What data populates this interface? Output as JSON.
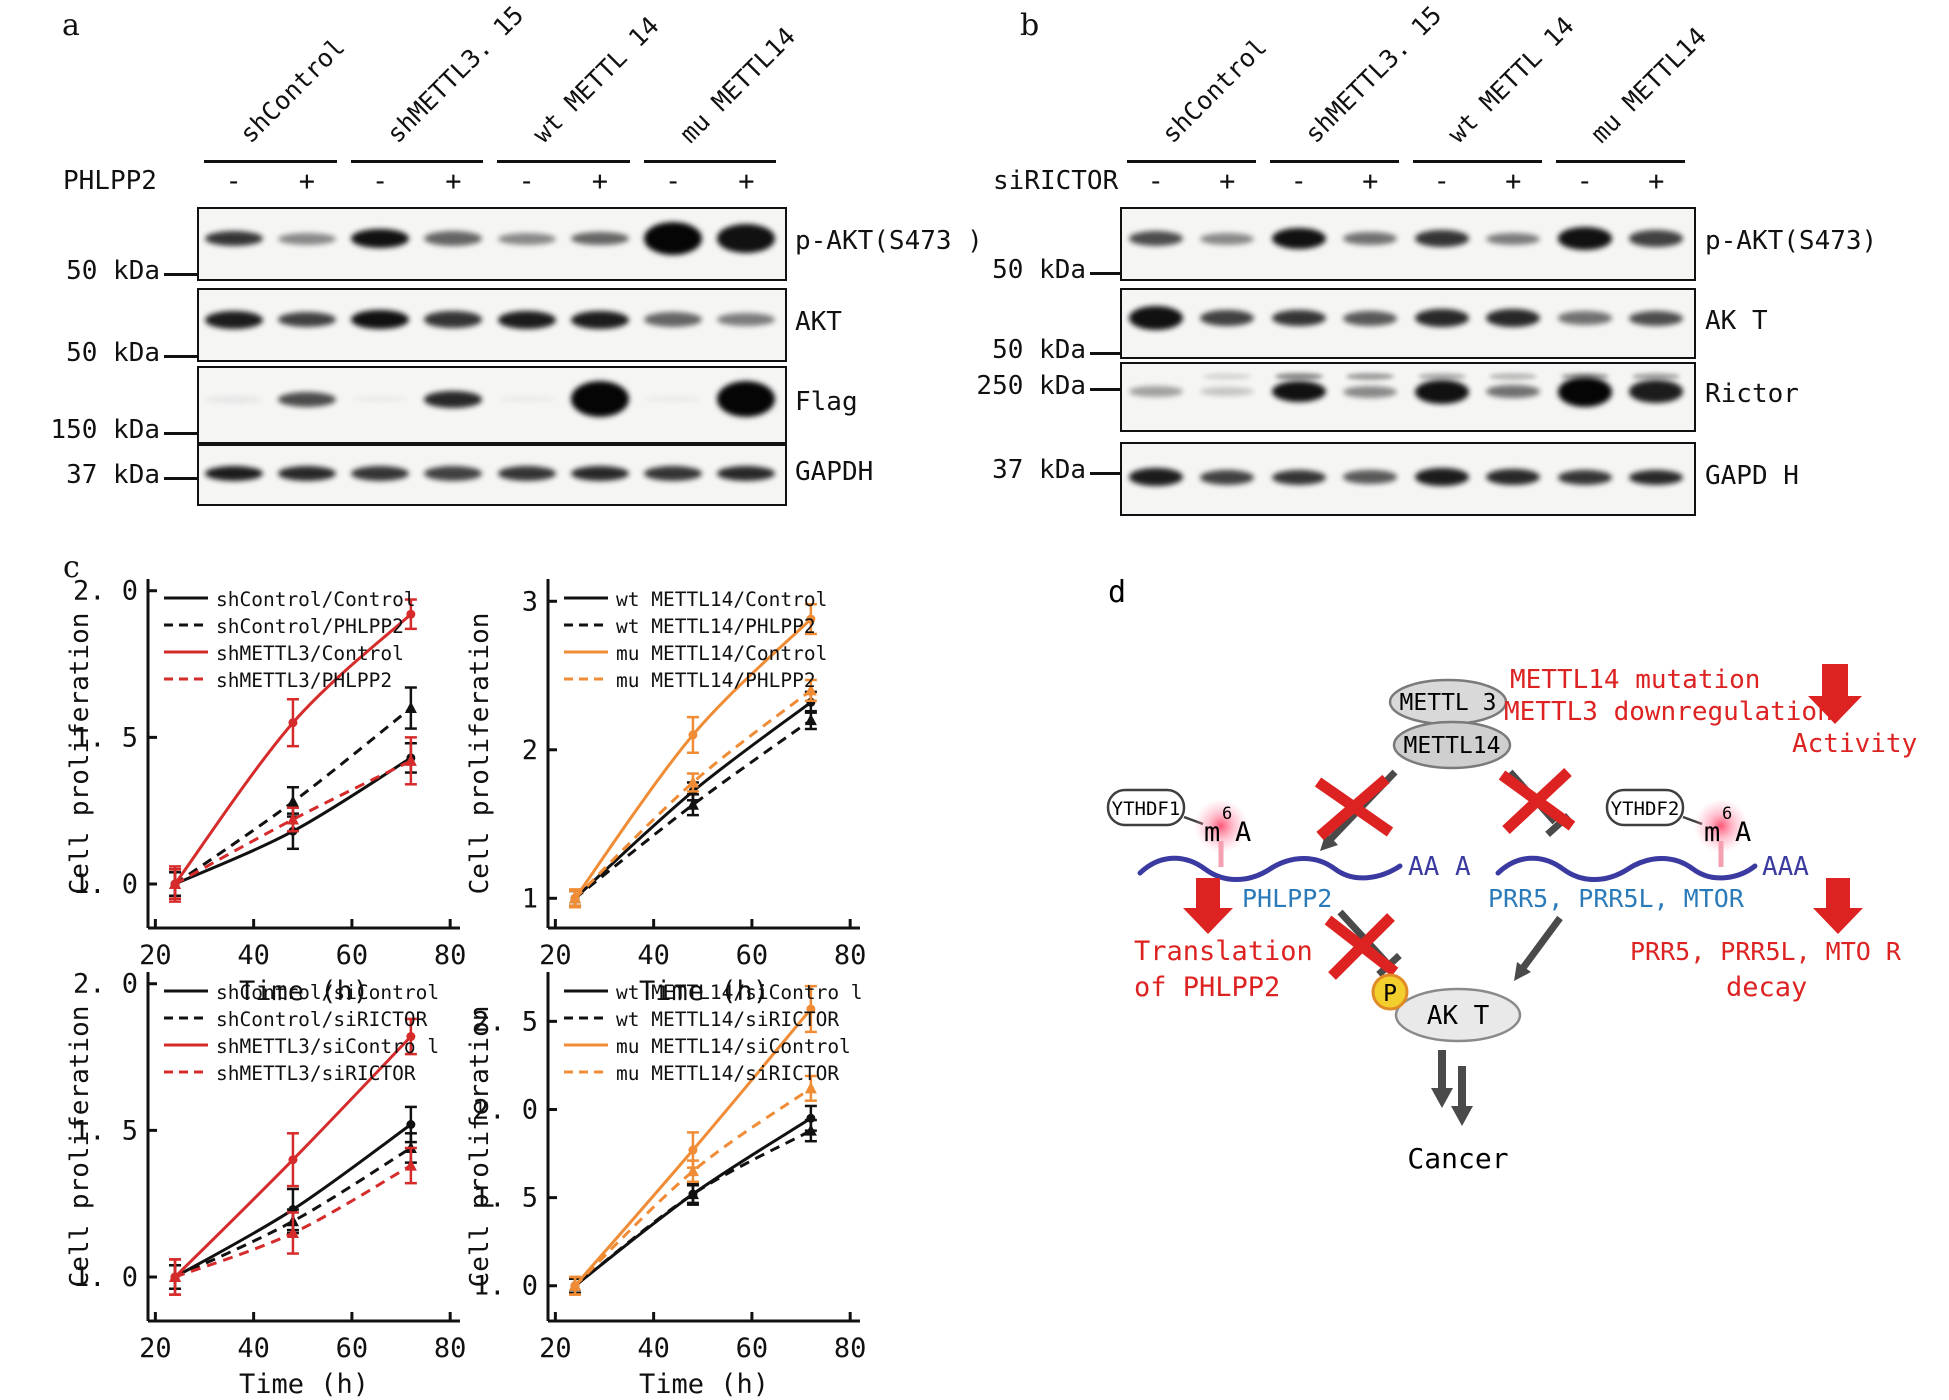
{
  "colors": {
    "black": "#111111",
    "chart_red": "#d62b2b",
    "chart_orange": "#ef8c35",
    "diagram_red": "#dd2222",
    "blue_label": "#2b7bba",
    "navy": "#3a3aa0",
    "gray_arrow": "#4a4a4a",
    "ellipse_fill": "#d9d9d9",
    "akt_fill": "#e9e9e9",
    "p_yellow": "#f2cf2c",
    "p_border": "#e08a28",
    "glow_pink": "#ff4d6e"
  },
  "panel_a": {
    "label": "a",
    "treatment_label": "PHLPP2",
    "groups": [
      "shControl",
      "shMETTL3. 15",
      "wt METTL 14",
      "mu METTL14"
    ],
    "lane_signs": [
      "-",
      "+",
      "-",
      "+",
      "-",
      "+",
      "-",
      "+"
    ],
    "rows": [
      {
        "antibody": "p-AKT(S473 )",
        "marker": "50 kDa",
        "bands": [
          0.8,
          0.45,
          0.95,
          0.6,
          0.45,
          0.6,
          1,
          0.95
        ],
        "scale": [
          1,
          0.8,
          1.3,
          1,
          0.8,
          0.9,
          2.2,
          1.9
        ]
      },
      {
        "antibody": "AKT",
        "marker": "50 kDa",
        "bands": [
          0.9,
          0.75,
          0.95,
          0.8,
          0.9,
          0.9,
          0.6,
          0.5
        ],
        "scale": [
          1.2,
          1,
          1.3,
          1.1,
          1.2,
          1.2,
          1,
          0.9
        ]
      },
      {
        "antibody": "Flag",
        "marker": "150 kDa",
        "bands": [
          0.06,
          0.7,
          0.04,
          0.85,
          0.04,
          1,
          0.04,
          1
        ],
        "scale": [
          0.5,
          1,
          0.4,
          1.1,
          0.4,
          2.4,
          0.4,
          2.4
        ]
      },
      {
        "antibody": "GAPDH",
        "marker": "37 kDa",
        "bands": [
          0.9,
          0.85,
          0.8,
          0.75,
          0.8,
          0.85,
          0.8,
          0.85
        ],
        "scale": [
          1,
          1,
          1,
          1,
          1,
          1,
          1,
          1
        ]
      }
    ]
  },
  "panel_b": {
    "label": "b",
    "treatment_label": "siRICTOR",
    "groups": [
      "shControl",
      "shMETTL3. 15",
      "wt METTL 14",
      "mu METTL14"
    ],
    "lane_signs": [
      "-",
      "+",
      "-",
      "+",
      "-",
      "+",
      "-",
      "+"
    ],
    "rows": [
      {
        "antibody": "p-AKT(S473)",
        "marker": "50 kDa",
        "bands": [
          0.7,
          0.45,
          0.95,
          0.55,
          0.8,
          0.5,
          0.95,
          0.75
        ],
        "scale": [
          1,
          0.8,
          1.4,
          0.9,
          1.1,
          0.8,
          1.5,
          1.1
        ]
      },
      {
        "antibody": "AK T",
        "marker": "50 kDa",
        "bands": [
          0.95,
          0.75,
          0.8,
          0.65,
          0.85,
          0.85,
          0.55,
          0.7
        ],
        "scale": [
          1.6,
          1.1,
          1.1,
          1,
          1.2,
          1.2,
          0.9,
          1
        ]
      },
      {
        "antibody": "Rictor",
        "marker": "250 kDa",
        "bands": [
          0.35,
          0.2,
          0.95,
          0.45,
          0.95,
          0.55,
          1,
          0.9
        ],
        "scale": [
          0.7,
          0.6,
          1.4,
          0.8,
          1.6,
          0.9,
          2,
          1.5
        ],
        "bands_faint": [
          0,
          0.15,
          0.55,
          0.45,
          0.35,
          0.3,
          0.45,
          0.4
        ]
      },
      {
        "antibody": "GAPD H",
        "marker": "37 kDa",
        "bands": [
          0.9,
          0.75,
          0.8,
          0.65,
          0.9,
          0.85,
          0.8,
          0.85
        ],
        "scale": [
          1.2,
          1,
          1,
          0.9,
          1.2,
          1.1,
          1,
          1
        ]
      }
    ]
  },
  "panel_c": {
    "label": "c"
  },
  "chart_data": [
    {
      "type": "line",
      "title": "",
      "xlabel": "Time (h)",
      "ylabel": "Cell proliferation",
      "x": [
        24,
        48,
        72
      ],
      "xlim": [
        18.5,
        82
      ],
      "ylim": [
        0.85,
        2.04
      ],
      "xticks": [
        20,
        40,
        60,
        80
      ],
      "xtick_labels": [
        "20",
        "40",
        "60",
        "80"
      ],
      "ytick_vals": [
        1.0,
        1.5,
        2.0
      ],
      "ytick_labels": [
        "1. 0",
        "1. 5",
        "2. 0"
      ],
      "legend_position": "top-left",
      "grid": false,
      "series": [
        {
          "name": "shControl/Control",
          "color": "#111111",
          "dash": false,
          "marker": "circle",
          "values": [
            1.0,
            1.18,
            1.43
          ],
          "err": [
            0.05,
            0.06,
            0.05
          ]
        },
        {
          "name": "shControl/PHLPP2",
          "color": "#111111",
          "dash": true,
          "marker": "triangle",
          "values": [
            1.0,
            1.28,
            1.6
          ],
          "err": [
            0.04,
            0.05,
            0.07
          ]
        },
        {
          "name": "shMETTL3/Control",
          "color": "#d62b2b",
          "dash": false,
          "marker": "circle",
          "values": [
            1.0,
            1.55,
            1.92
          ],
          "err": [
            0.05,
            0.08,
            0.05
          ]
        },
        {
          "name": "shMETTL3/PHLPP2",
          "color": "#d62b2b",
          "dash": true,
          "marker": "triangle",
          "values": [
            1.0,
            1.22,
            1.42
          ],
          "err": [
            0.06,
            0.04,
            0.08
          ]
        }
      ]
    },
    {
      "type": "line",
      "title": "",
      "xlabel": "Time (h)",
      "ylabel": "Cell proliferation",
      "x": [
        24,
        48,
        72
      ],
      "xlim": [
        18.5,
        82
      ],
      "ylim": [
        0.8,
        3.15
      ],
      "xticks": [
        20,
        40,
        60,
        80
      ],
      "xtick_labels": [
        "20",
        "40",
        "60",
        "80"
      ],
      "ytick_vals": [
        1,
        2,
        3
      ],
      "ytick_labels": [
        "1",
        "2",
        "3"
      ],
      "legend_position": "top-left",
      "grid": false,
      "series": [
        {
          "name": "wt METTL14/Control",
          "color": "#111111",
          "dash": false,
          "marker": "circle",
          "values": [
            1.0,
            1.72,
            2.32
          ],
          "err": [
            0.05,
            0.06,
            0.07
          ]
        },
        {
          "name": "wt METTL14/PHLPP2",
          "color": "#111111",
          "dash": true,
          "marker": "triangle",
          "values": [
            1.0,
            1.63,
            2.2
          ],
          "err": [
            0.05,
            0.07,
            0.06
          ]
        },
        {
          "name": "mu METTL14/Control",
          "color": "#ef8c35",
          "dash": false,
          "marker": "circle",
          "values": [
            1.0,
            2.1,
            2.88
          ],
          "err": [
            0.06,
            0.12,
            0.1
          ]
        },
        {
          "name": "mu METTL14/PHLPP2",
          "color": "#ef8c35",
          "dash": true,
          "marker": "triangle",
          "values": [
            1.0,
            1.78,
            2.4
          ],
          "err": [
            0.05,
            0.06,
            0.07
          ]
        }
      ]
    },
    {
      "type": "line",
      "title": "",
      "xlabel": "Time (h)",
      "ylabel": "Cell proliferation",
      "x": [
        24,
        48,
        72
      ],
      "xlim": [
        18.5,
        82
      ],
      "ylim": [
        0.85,
        2.04
      ],
      "xticks": [
        20,
        40,
        60,
        80
      ],
      "xtick_labels": [
        "20",
        "40",
        "60",
        "80"
      ],
      "ytick_vals": [
        1.0,
        1.5,
        2.0
      ],
      "ytick_labels": [
        "1. 0",
        "1. 5",
        "2. 0"
      ],
      "legend_position": "top-left",
      "grid": false,
      "series": [
        {
          "name": "shControl/siControl",
          "color": "#111111",
          "dash": false,
          "marker": "circle",
          "values": [
            1.0,
            1.23,
            1.52
          ],
          "err": [
            0.04,
            0.07,
            0.06
          ]
        },
        {
          "name": "shControl/siRICTOR",
          "color": "#111111",
          "dash": true,
          "marker": "triangle",
          "values": [
            1.0,
            1.19,
            1.44
          ],
          "err": [
            0.04,
            0.04,
            0.05
          ]
        },
        {
          "name": "shMETTL3/siContro l",
          "color": "#d62b2b",
          "dash": false,
          "marker": "circle",
          "values": [
            1.0,
            1.4,
            1.82
          ],
          "err": [
            0.06,
            0.09,
            0.06
          ]
        },
        {
          "name": "shMETTL3/siRICTOR",
          "color": "#d62b2b",
          "dash": true,
          "marker": "triangle",
          "values": [
            1.0,
            1.15,
            1.38
          ],
          "err": [
            0.06,
            0.07,
            0.06
          ]
        }
      ]
    },
    {
      "type": "line",
      "title": "",
      "xlabel": "Time (h)",
      "ylabel": "Cell proliferation",
      "x": [
        24,
        48,
        72
      ],
      "xlim": [
        18.5,
        82
      ],
      "ylim": [
        0.8,
        2.78
      ],
      "xticks": [
        20,
        40,
        60,
        80
      ],
      "xtick_labels": [
        "20",
        "40",
        "60",
        "80"
      ],
      "ytick_vals": [
        1.0,
        1.5,
        2.0,
        2.5
      ],
      "ytick_labels": [
        "1. 0",
        "1. 5",
        "2. 0",
        "2. 5"
      ],
      "legend_position": "top-left",
      "grid": false,
      "series": [
        {
          "name": "wt METTL14/siContro l",
          "color": "#111111",
          "dash": false,
          "marker": "circle",
          "values": [
            1.0,
            1.52,
            1.95
          ],
          "err": [
            0.04,
            0.06,
            0.07
          ]
        },
        {
          "name": "wt METTL14/siRICTOR",
          "color": "#111111",
          "dash": true,
          "marker": "triangle",
          "values": [
            1.0,
            1.52,
            1.88
          ],
          "err": [
            0.04,
            0.05,
            0.06
          ]
        },
        {
          "name": "mu METTL14/siControl",
          "color": "#ef8c35",
          "dash": false,
          "marker": "circle",
          "values": [
            1.0,
            1.77,
            2.57
          ],
          "err": [
            0.05,
            0.1,
            0.13
          ]
        },
        {
          "name": "mu METTL14/siRICTOR",
          "color": "#ef8c35",
          "dash": true,
          "marker": "triangle",
          "values": [
            1.0,
            1.65,
            2.12
          ],
          "err": [
            0.05,
            0.06,
            0.07
          ]
        }
      ]
    }
  ],
  "panel_d": {
    "label": "d",
    "mettl3": "METTL 3",
    "mettl14": "METTL14",
    "mutation_line1": "METTL14 mutation",
    "mutation_line2": "METTL3 downregulation",
    "activity": "Activity",
    "ythdf1": "YTHDF1",
    "ythdf2": "YTHDF2",
    "m6a_m": "m",
    "m6a_sup": "6",
    "m6a_a": "A",
    "polya_left": "AA A",
    "polya_right": "AAA",
    "phlpp2": "PHLPP2",
    "prr5_blue": "PRR5, PRR5L, MTOR",
    "translation_line1": "Translation",
    "translation_line2": "of PHLPP2",
    "decay_line1": "PRR5, PRR5L, MTO R",
    "decay_line2": "decay",
    "p_label": "P",
    "akt": "AK T",
    "cancer": "Cancer"
  }
}
